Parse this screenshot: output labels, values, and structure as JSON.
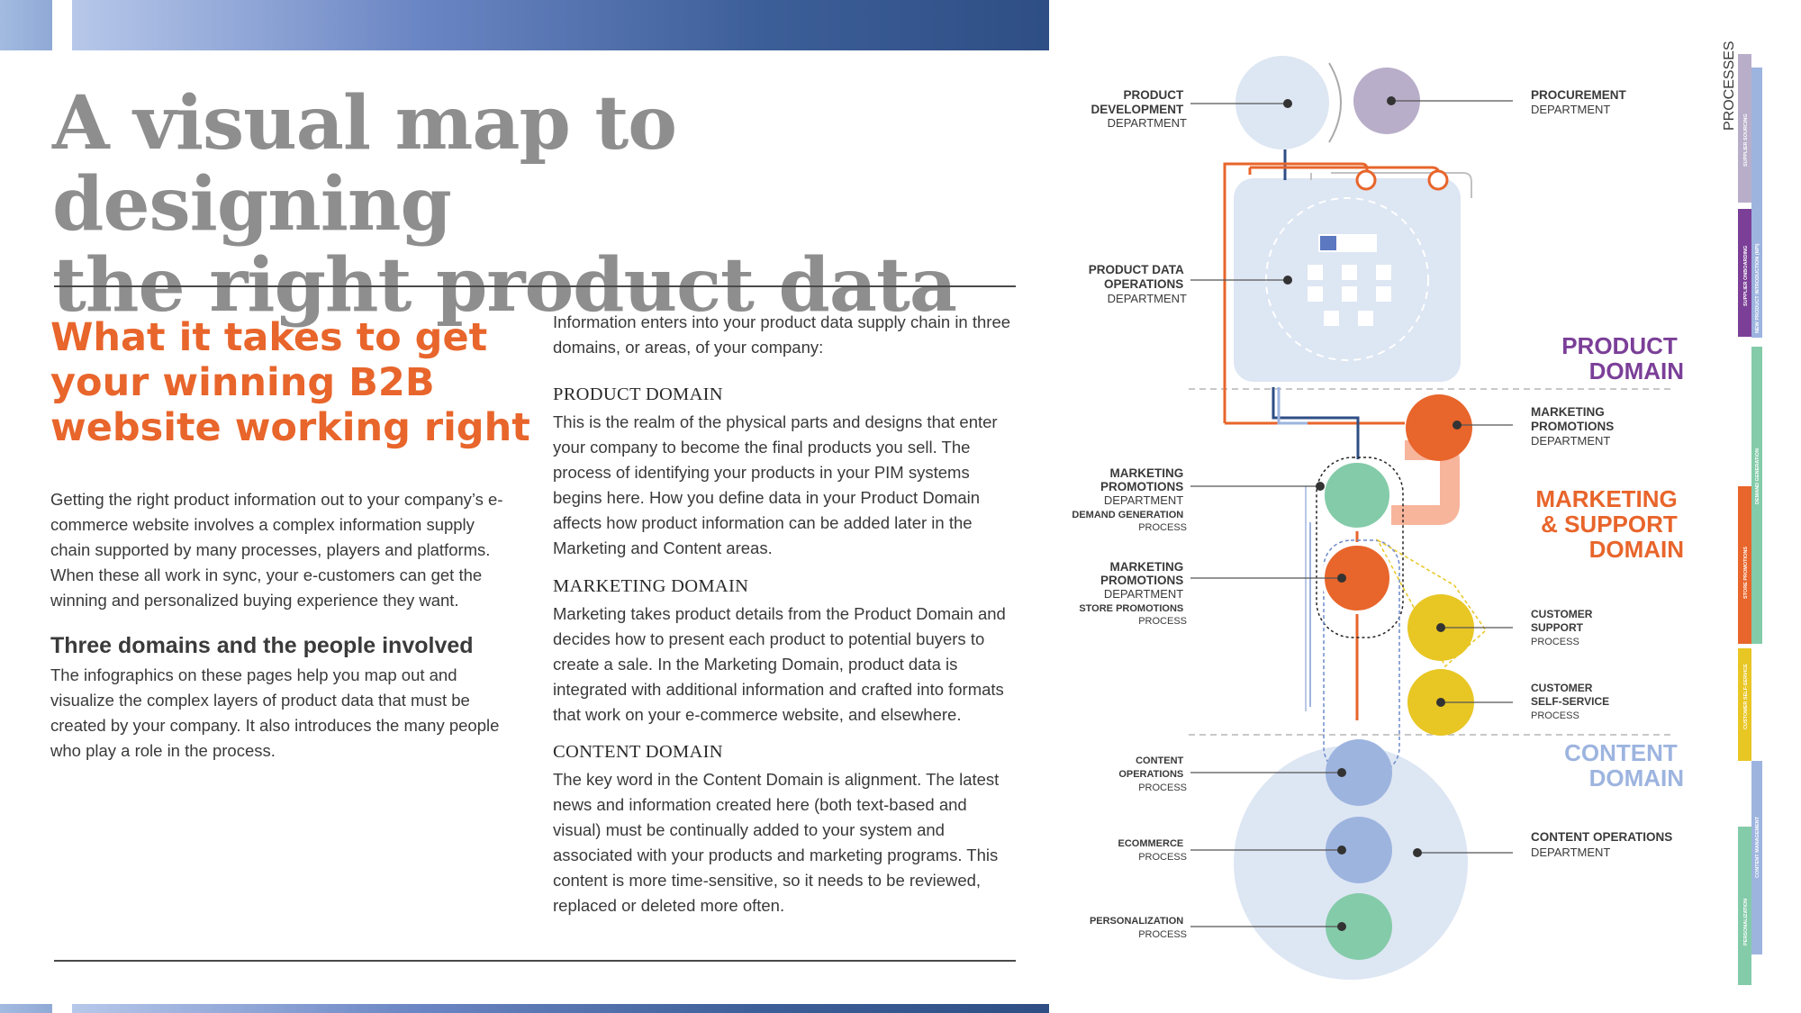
{
  "title_lines": [
    "A visual map to designing",
    "the right product data"
  ],
  "subheading_lines": [
    "What it takes to get",
    "your winning B2B",
    "website working right"
  ],
  "intro": "Getting the right product information out to your company’s e-commerce website involves a complex information supply chain supported by many processes, players and platforms. When these all work in sync, your e-customers can get the winning and personalized buying experience they want.",
  "three_domains": {
    "heading": "Three domains and the people involved",
    "text": "The infographics on these pages help you map out and visualize the complex layers of product data that must be created by your company. It also introduces the many people who play a role in the process."
  },
  "right_intro": "Information enters into your product data supply chain in three domains, or areas, of your company:",
  "sections": [
    {
      "heading": "PRODUCT DOMAIN",
      "text": "This is the realm of the physical parts and designs that enter your company to become the final products you sell. The process of identifying your products in your PIM systems begins here. How you define data in your Product Domain affects how product information can be added later in the Marketing and Content areas."
    },
    {
      "heading": "MARKETING DOMAIN",
      "text": "Marketing takes product details from the Product Domain and decides how to present each product to potential buyers to create a sale. In the Marketing Domain, product data is integrated with additional information and crafted into formats that work on your e-commerce website, and elsewhere."
    },
    {
      "heading": "CONTENT DOMAIN",
      "text": "The key word in the Content Domain is alignment. The latest news and information created here (both text-based and visual) must be continually added to your system and associated with your products and marketing programs. This content is more time-sensitive, so it needs to be reviewed, replaced or deleted more often."
    }
  ],
  "diagram": {
    "left_labels": [
      {
        "lines_bold": [
          "PRODUCT",
          "DEVELOPMENT"
        ],
        "lines": [
          "DEPARTMENT"
        ]
      },
      {
        "lines_bold": [
          "PRODUCT DATA",
          "OPERATIONS"
        ],
        "lines": [
          "DEPARTMENT"
        ]
      },
      {
        "lines_bold": [
          "MARKETING",
          "PROMOTIONS"
        ],
        "lines": [
          "DEPARTMENT"
        ],
        "sub_bold": "DEMAND GENERATION",
        "sub": "PROCESS"
      },
      {
        "lines_bold": [
          "MARKETING",
          "PROMOTIONS"
        ],
        "lines": [
          "DEPARTMENT"
        ],
        "sub_bold": "STORE PROMOTIONS",
        "sub": "PROCESS"
      },
      {
        "lines_bold": [
          "CONTENT",
          "OPERATIONS"
        ],
        "lines": [
          "PROCESS"
        ]
      },
      {
        "lines_bold": [
          "ECOMMERCE"
        ],
        "lines": [
          "PROCESS"
        ]
      },
      {
        "lines_bold": [
          "PERSONALIZATION"
        ],
        "lines": [
          "PROCESS"
        ]
      }
    ],
    "right_labels": [
      {
        "lines_bold": [
          "PROCUREMENT"
        ],
        "lines": [
          "DEPARTMENT"
        ]
      },
      {
        "lines_bold": [
          "MARKETING",
          "PROMOTIONS"
        ],
        "lines": [
          "DEPARTMENT"
        ]
      },
      {
        "lines_bold": [
          "CUSTOMER",
          "SUPPORT"
        ],
        "lines": [
          "PROCESS"
        ]
      },
      {
        "lines_bold": [
          "CUSTOMER",
          "SELF-SERVICE"
        ],
        "lines": [
          "PROCESS"
        ]
      },
      {
        "lines_bold": [
          "CONTENT OPERATIONS"
        ],
        "lines": [
          "DEPARTMENT"
        ]
      }
    ],
    "domains": [
      {
        "lines": [
          "PRODUCT",
          "DOMAIN"
        ],
        "color": "#7b3f98"
      },
      {
        "lines": [
          "MARKETING",
          "& SUPPORT",
          "DOMAIN"
        ],
        "color": "#e8652b"
      },
      {
        "lines": [
          "CONTENT",
          "DOMAIN"
        ],
        "color": "#9db4df"
      }
    ],
    "side_title": "PROCESSES",
    "side_processes": [
      "SUPPLIER SOURCING",
      "SUPPLIER ONBOARDING",
      "NEW PRODUCT INTRODUCTION (NPI)",
      "DEMAND GENERATION",
      "STORE PROMOTIONS",
      "CUSTOMER SELF-SERVICE",
      "CONTENT MANAGEMENT",
      "PERSONALIZATION"
    ],
    "colors": {
      "purple": "#7b3f98",
      "orange": "#e8652b",
      "green": "#84cba9",
      "yellow": "#e8c624",
      "blue": "#9db4df",
      "light_blue": "#dde6f3",
      "gray_purple": "#b8aec9"
    }
  }
}
